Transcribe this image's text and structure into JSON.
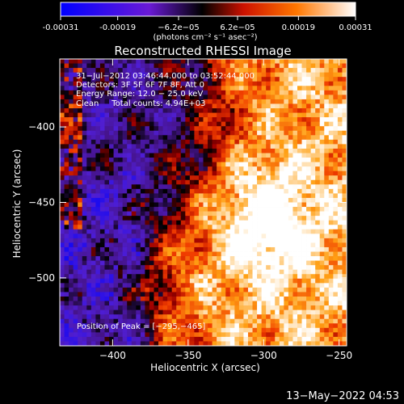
{
  "chart_data": {
    "type": "heatmap",
    "title": "Reconstructed RHESSI Image",
    "xlabel": "Heliocentric X (arcsec)",
    "ylabel": "Heliocentric Y (arcsec)",
    "xlim": [
      -435,
      -245
    ],
    "ylim": [
      -545,
      -355
    ],
    "x_ticks": [
      -400,
      -350,
      -300,
      -250
    ],
    "y_ticks": [
      -500,
      -450,
      -400
    ],
    "x_tick_labels": [
      "−400",
      "−350",
      "−300",
      "−250"
    ],
    "y_tick_labels": [
      "−500",
      "−450",
      "−400"
    ],
    "colorbar": {
      "min": -0.00031,
      "max": 0.00031,
      "tick_labels": [
        "-0.00031",
        "-0.00019",
        "−6.2e−05",
        "6.2e−05",
        "0.00019",
        "0.00031"
      ],
      "tick_values": [
        -0.00031,
        -0.00019,
        -6.2e-05,
        6.2e-05,
        0.00019,
        0.00031
      ],
      "unit_label": "(photons cm⁻² s⁻¹ asec⁻²)",
      "colors": [
        "#0000ff",
        "#6a1ad6",
        "#000000",
        "#cc1100",
        "#ff7700",
        "#ffffff"
      ]
    },
    "info_lines": [
      "31−Jul−2012 03:46:44.000 to 03:52:44.000",
      "Detectors: 3F 5F 6F 7F 8F, Att 0",
      "Energy Range: 12.0 − 25.0 keV",
      "Clean     Total counts: 4.94E+03"
    ],
    "peak_label": "Position of Peak = [−295,−465]",
    "peak": {
      "x": -295,
      "y": -465
    },
    "timestamp": "13−May−2022 04:53"
  }
}
